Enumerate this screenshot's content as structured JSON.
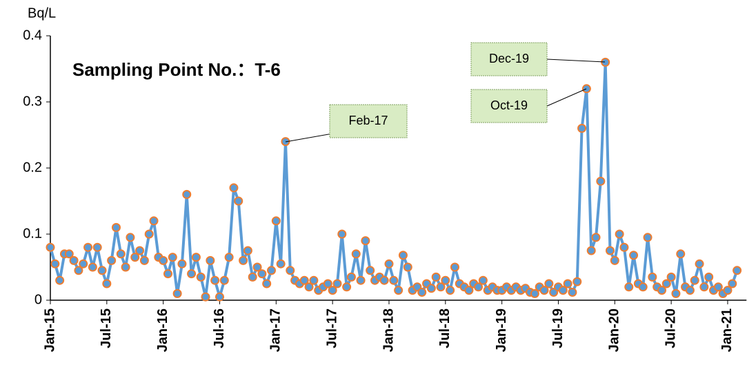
{
  "chart_data": {
    "type": "line",
    "title": "Sampling Point No.：T-6",
    "y_label": "Bq/L",
    "annotations": [
      "Feb-17",
      "Oct-19",
      "Dec-19"
    ],
    "x": [
      0,
      0.5,
      1,
      1.5,
      2,
      2.5,
      3,
      3.5,
      4,
      4.5,
      5,
      5.5,
      6,
      6.5,
      7,
      7.5,
      8,
      8.5,
      9,
      9.5,
      10,
      10.5,
      11,
      11.5,
      12,
      12.5,
      13,
      13.5,
      14,
      14.5,
      15,
      15.5,
      16,
      16.5,
      17,
      17.5,
      18,
      18.5,
      19,
      19.5,
      20,
      20.5,
      21,
      21.5,
      22,
      22.5,
      23,
      23.5,
      24,
      24.5,
      25,
      25.5,
      26,
      26.5,
      27,
      27.5,
      28,
      28.5,
      29,
      29.5,
      30,
      30.5,
      31,
      31.5,
      32,
      32.5,
      33,
      33.5,
      34,
      34.5,
      35,
      35.5,
      36,
      36.5,
      37,
      37.5,
      38,
      38.5,
      39,
      39.5,
      40,
      40.5,
      41,
      41.5,
      42,
      42.5,
      43,
      43.5,
      44,
      44.5,
      45,
      45.5,
      46,
      46.5,
      47,
      47.5,
      48,
      48.5,
      49,
      49.5,
      50,
      50.5,
      51,
      51.5,
      52,
      52.5,
      53,
      53.5,
      54,
      54.5,
      55,
      55.5,
      56,
      56.5,
      57,
      57.5,
      58,
      58.5,
      59,
      59.5,
      60,
      60.5,
      61,
      61.5,
      62,
      62.5,
      63,
      63.5,
      64,
      64.5,
      65,
      65.5,
      66,
      66.5,
      67,
      67.5,
      68,
      68.5,
      69,
      69.5,
      70,
      70.5,
      71,
      71.5,
      72,
      72.5,
      73
    ],
    "series": [
      {
        "name": "T-6",
        "color": "#5b9bd5",
        "marker_edge": "#ed7d31",
        "values": [
          0.08,
          0.055,
          0.03,
          0.07,
          0.07,
          0.06,
          0.045,
          0.055,
          0.08,
          0.05,
          0.08,
          0.045,
          0.025,
          0.06,
          0.11,
          0.07,
          0.05,
          0.095,
          0.065,
          0.075,
          0.06,
          0.1,
          0.12,
          0.065,
          0.06,
          0.04,
          0.065,
          0.01,
          0.055,
          0.16,
          0.04,
          0.065,
          0.035,
          0.005,
          0.06,
          0.03,
          0.005,
          0.03,
          0.065,
          0.17,
          0.15,
          0.06,
          0.075,
          0.035,
          0.05,
          0.04,
          0.025,
          0.045,
          0.12,
          0.055,
          0.24,
          0.045,
          0.03,
          0.025,
          0.03,
          0.02,
          0.03,
          0.015,
          0.02,
          0.025,
          0.015,
          0.025,
          0.1,
          0.02,
          0.035,
          0.07,
          0.03,
          0.09,
          0.045,
          0.03,
          0.035,
          0.03,
          0.055,
          0.03,
          0.015,
          0.068,
          0.05,
          0.015,
          0.02,
          0.012,
          0.025,
          0.018,
          0.035,
          0.02,
          0.03,
          0.015,
          0.05,
          0.025,
          0.02,
          0.015,
          0.025,
          0.02,
          0.03,
          0.015,
          0.02,
          0.015,
          0.015,
          0.02,
          0.015,
          0.02,
          0.015,
          0.018,
          0.012,
          0.01,
          0.02,
          0.015,
          0.025,
          0.012,
          0.02,
          0.015,
          0.025,
          0.012,
          0.028,
          0.26,
          0.32,
          0.075,
          0.095,
          0.18,
          0.36,
          0.075,
          0.06,
          0.1,
          0.08,
          0.02,
          0.068,
          0.025,
          0.02,
          0.095,
          0.035,
          0.02,
          0.015,
          0.025,
          0.035,
          0.01,
          0.07,
          0.02,
          0.015,
          0.03,
          0.055,
          0.02,
          0.035,
          0.015,
          0.02,
          0.01,
          0.015,
          0.025,
          0.045
        ]
      }
    ],
    "xlim": [
      0,
      74
    ],
    "xticks": [
      {
        "value": 0,
        "label": "Jan-15"
      },
      {
        "value": 6,
        "label": "Jul-15"
      },
      {
        "value": 12,
        "label": "Jan-16"
      },
      {
        "value": 18,
        "label": "Jul-16"
      },
      {
        "value": 24,
        "label": "Jan-17"
      },
      {
        "value": 30,
        "label": "Jul-17"
      },
      {
        "value": 36,
        "label": "Jan-18"
      },
      {
        "value": 42,
        "label": "Jul-18"
      },
      {
        "value": 48,
        "label": "Jan-19"
      },
      {
        "value": 54,
        "label": "Jul-19"
      },
      {
        "value": 60,
        "label": "Jan-20"
      },
      {
        "value": 66,
        "label": "Jul-20"
      },
      {
        "value": 72,
        "label": "Jan-21"
      }
    ],
    "ylim": [
      0,
      0.4
    ],
    "yticks": [
      0,
      0.1,
      0.2,
      0.3,
      0.4
    ]
  }
}
